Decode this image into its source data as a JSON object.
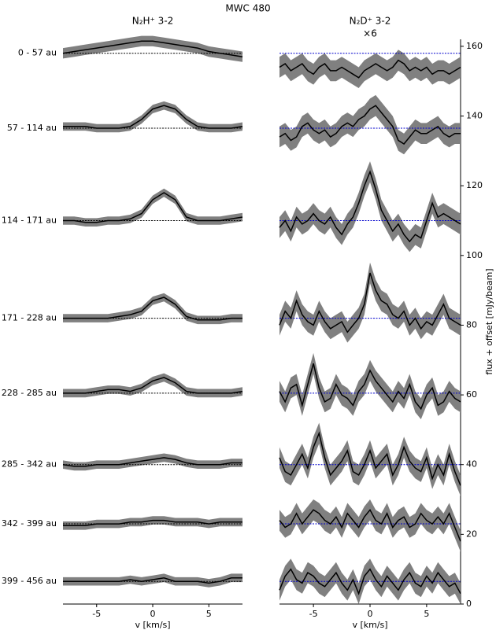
{
  "title": "MWC 480",
  "chart_data": [
    {
      "type": "line",
      "title": "N₂H⁺ 3-2",
      "xlabel": "v [km/s]",
      "xlim": [
        -8,
        8
      ],
      "xticks": [
        -5,
        0,
        5
      ],
      "ylim": [
        0,
        162
      ],
      "color": "#000000",
      "band_color": "#808080",
      "baseline_color": "#000000",
      "x": [
        -8,
        -7,
        -6,
        -5,
        -4,
        -3,
        -2,
        -1,
        0,
        1,
        2,
        3,
        4,
        5,
        6,
        7,
        8
      ],
      "series": [
        {
          "name": "0 - 57 au",
          "offset": 158,
          "error": 1.5,
          "values": [
            158,
            158.5,
            159,
            159.5,
            160,
            160.5,
            161,
            161.5,
            161.5,
            161,
            160.5,
            160,
            159.5,
            158.5,
            158,
            157.5,
            157
          ]
        },
        {
          "name": "57 - 114 au",
          "offset": 136.5,
          "error": 1.2,
          "values": [
            137,
            137,
            137,
            136.5,
            136.5,
            136.5,
            137,
            139,
            142,
            143,
            142,
            139,
            137,
            136.5,
            136.5,
            136.5,
            137
          ]
        },
        {
          "name": "114 - 171 au",
          "offset": 110,
          "error": 1.2,
          "values": [
            110,
            110,
            109.5,
            109.5,
            110,
            110,
            110.5,
            112,
            116,
            118,
            116,
            111,
            110,
            110,
            110,
            110.5,
            111
          ]
        },
        {
          "name": "171 - 228 au",
          "offset": 82,
          "error": 1.2,
          "values": [
            82,
            82,
            82,
            82,
            82,
            82.5,
            83,
            84,
            87,
            88,
            86,
            82.5,
            81.5,
            81.5,
            81.5,
            82,
            82
          ]
        },
        {
          "name": "228 - 285 au",
          "offset": 60.5,
          "error": 1.2,
          "values": [
            60.5,
            60.5,
            60.5,
            61,
            61.5,
            61.5,
            61,
            62,
            64,
            65,
            63.5,
            61,
            60.5,
            60.5,
            60.5,
            60.5,
            61
          ]
        },
        {
          "name": "285 - 342 au",
          "offset": 40,
          "error": 1.2,
          "values": [
            40,
            39.5,
            39.5,
            40,
            40,
            40,
            40.5,
            41,
            41.5,
            42,
            41.5,
            40.5,
            40,
            40,
            40,
            40.5,
            40.5
          ]
        },
        {
          "name": "342 - 399 au",
          "offset": 23,
          "error": 1.2,
          "values": [
            22.5,
            22.5,
            22.5,
            23,
            23,
            23,
            23.5,
            23.5,
            24,
            24,
            23.5,
            23.5,
            23.5,
            23,
            23.5,
            23.5,
            23.5
          ]
        },
        {
          "name": "399 - 456 au",
          "offset": 6.5,
          "error": 1.2,
          "values": [
            6.5,
            6.5,
            6.5,
            6.5,
            6.5,
            6.5,
            7,
            6.5,
            7,
            7.5,
            6.5,
            6.5,
            6.5,
            6,
            6.5,
            7.5,
            7.5
          ]
        }
      ]
    },
    {
      "type": "line",
      "title": "N₂D⁺ 3-2",
      "subtitle": "×6",
      "xlabel": "v [km/s]",
      "ylabel": "flux + offset [mJy/beam]",
      "xlim": [
        -8,
        8
      ],
      "xticks": [
        -5,
        0,
        5
      ],
      "ylim": [
        0,
        162
      ],
      "yticks": [
        0,
        20,
        40,
        60,
        80,
        100,
        120,
        140,
        160
      ],
      "color": "#000000",
      "band_color": "#808080",
      "baseline_color": "#0000cc",
      "x": [
        -8,
        -7.5,
        -7,
        -6.5,
        -6,
        -5.5,
        -5,
        -4.5,
        -4,
        -3.5,
        -3,
        -2.5,
        -2,
        -1.5,
        -1,
        -0.5,
        0,
        0.5,
        1,
        1.5,
        2,
        2.5,
        3,
        3.5,
        4,
        4.5,
        5,
        5.5,
        6,
        6.5,
        7,
        7.5,
        8
      ],
      "series": [
        {
          "offset": 158,
          "error": 3,
          "values": [
            154,
            155,
            153,
            154,
            155,
            153,
            152,
            154,
            155,
            153,
            153,
            154,
            153,
            152,
            151,
            153,
            154,
            155,
            154,
            153,
            154,
            156,
            155,
            153,
            154,
            153,
            154,
            152,
            153,
            153,
            152,
            153,
            154
          ]
        },
        {
          "offset": 136.5,
          "error": 3,
          "values": [
            134,
            135,
            133,
            134,
            137,
            138,
            136,
            135,
            136,
            134,
            135,
            137,
            138,
            137,
            139,
            140,
            142,
            143,
            141,
            139,
            137,
            133,
            132,
            134,
            136,
            135,
            135,
            136,
            137,
            135,
            134,
            135,
            135
          ]
        },
        {
          "offset": 110,
          "error": 3,
          "values": [
            108,
            110,
            107,
            111,
            109,
            110,
            112,
            110,
            109,
            111,
            108,
            106,
            109,
            111,
            115,
            120,
            124,
            119,
            113,
            110,
            107,
            109,
            106,
            104,
            106,
            105,
            110,
            115,
            111,
            112,
            111,
            110,
            109
          ]
        },
        {
          "offset": 82,
          "error": 3,
          "values": [
            80,
            84,
            82,
            87,
            83,
            81,
            80,
            84,
            81,
            79,
            80,
            81,
            78,
            80,
            82,
            86,
            95,
            90,
            87,
            86,
            83,
            82,
            84,
            80,
            82,
            79,
            81,
            80,
            83,
            86,
            82,
            81,
            80
          ]
        },
        {
          "offset": 60.5,
          "error": 3,
          "values": [
            61,
            58,
            62,
            63,
            57,
            63,
            69,
            62,
            58,
            59,
            63,
            60,
            59,
            57,
            61,
            63,
            67,
            64,
            62,
            60,
            58,
            61,
            59,
            63,
            58,
            56,
            60,
            62,
            57,
            58,
            61,
            59,
            58
          ]
        },
        {
          "offset": 40,
          "error": 3,
          "values": [
            42,
            38,
            37,
            40,
            43,
            39,
            45,
            49,
            42,
            37,
            39,
            41,
            44,
            38,
            37,
            40,
            44,
            39,
            41,
            43,
            37,
            40,
            45,
            41,
            39,
            38,
            42,
            36,
            40,
            37,
            43,
            38,
            34
          ]
        },
        {
          "offset": 23,
          "error": 3,
          "values": [
            24,
            22,
            23,
            26,
            23,
            25,
            27,
            26,
            24,
            23,
            25,
            22,
            26,
            24,
            22,
            25,
            27,
            24,
            23,
            26,
            22,
            24,
            25,
            22,
            23,
            26,
            24,
            23,
            25,
            23,
            26,
            22,
            18
          ]
        },
        {
          "offset": 6.5,
          "error": 3,
          "values": [
            4,
            8,
            10,
            7,
            6,
            9,
            8,
            6,
            5,
            7,
            9,
            6,
            4,
            7,
            3,
            8,
            10,
            7,
            5,
            8,
            6,
            4,
            7,
            9,
            6,
            5,
            8,
            6,
            9,
            7,
            5,
            6,
            3
          ]
        }
      ]
    }
  ]
}
